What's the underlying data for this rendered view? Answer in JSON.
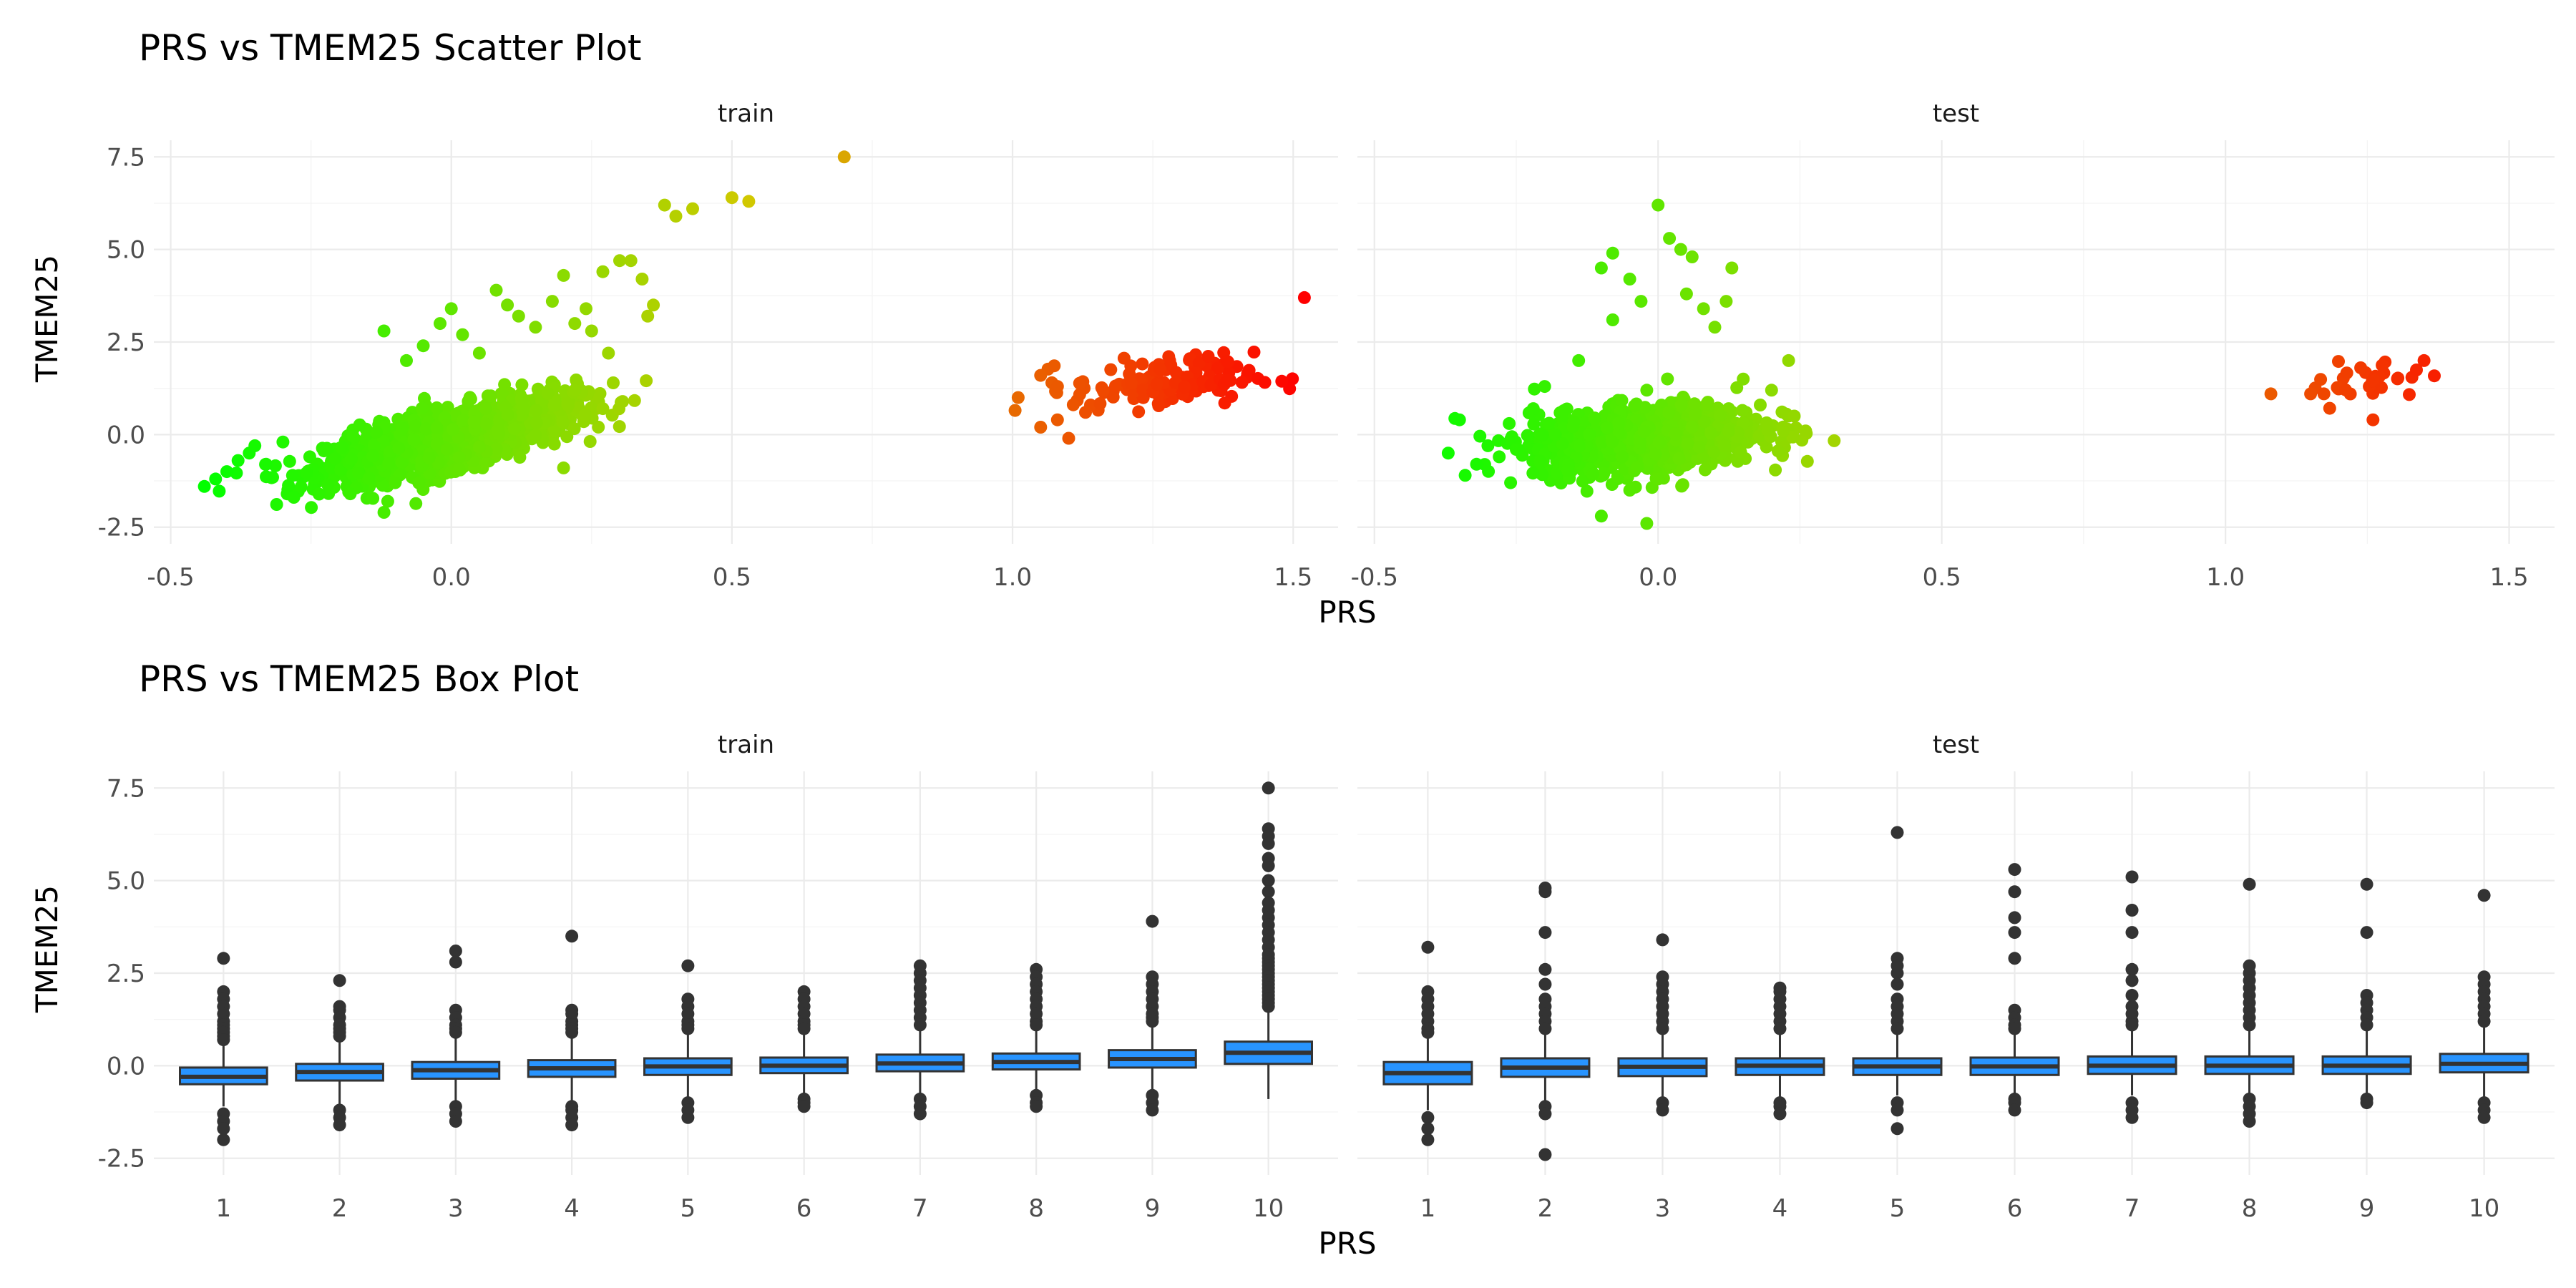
{
  "chart_data": [
    {
      "type": "scatter",
      "title": "PRS vs TMEM25 Scatter Plot",
      "xlabel": "PRS",
      "ylabel": "TMEM25",
      "xlim": [
        -0.53,
        1.58
      ],
      "ylim": [
        -2.95,
        7.95
      ],
      "x_ticks": [
        "-0.5",
        "0.0",
        "0.5",
        "1.0",
        "1.5"
      ],
      "y_ticks": [
        "-2.5",
        "0.0",
        "2.5",
        "5.0",
        "7.5"
      ],
      "grid": true,
      "color_by": "PRS",
      "color_scale": [
        "#00ff00",
        "#ff0000"
      ],
      "panels": [
        {
          "strip": "train",
          "clusters": [
            {
              "cx": 0.0,
              "cy": -0.1,
              "sx": 0.11,
              "sy": 0.55,
              "rho": 0.72,
              "n": 1500
            },
            {
              "cx": 1.27,
              "cy": 1.4,
              "sx": 0.08,
              "sy": 0.35,
              "rho": 0.2,
              "n": 140
            }
          ],
          "points": [
            [
              -0.44,
              -1.4
            ],
            [
              -0.42,
              -1.2
            ],
            [
              -0.4,
              -1.0
            ],
            [
              -0.38,
              -0.7
            ],
            [
              -0.36,
              -0.5
            ],
            [
              -0.35,
              -0.3
            ],
            [
              -0.33,
              -0.8
            ],
            [
              -0.3,
              -0.2
            ],
            [
              -0.12,
              2.8
            ],
            [
              -0.18,
              -1.6
            ],
            [
              -0.12,
              -2.1
            ],
            [
              -0.1,
              -1.3
            ],
            [
              -0.08,
              2.0
            ],
            [
              -0.05,
              2.4
            ],
            [
              -0.02,
              3.0
            ],
            [
              0.0,
              3.4
            ],
            [
              0.02,
              2.7
            ],
            [
              0.05,
              2.2
            ],
            [
              0.08,
              3.9
            ],
            [
              0.1,
              3.5
            ],
            [
              0.12,
              3.2
            ],
            [
              0.15,
              2.9
            ],
            [
              0.18,
              3.6
            ],
            [
              0.2,
              4.3
            ],
            [
              0.22,
              3.0
            ],
            [
              0.24,
              3.4
            ],
            [
              0.25,
              2.8
            ],
            [
              0.27,
              4.4
            ],
            [
              0.3,
              4.7
            ],
            [
              0.32,
              4.7
            ],
            [
              0.35,
              3.2
            ],
            [
              0.36,
              3.5
            ],
            [
              0.34,
              4.2
            ],
            [
              0.38,
              6.2
            ],
            [
              0.4,
              5.9
            ],
            [
              0.43,
              6.1
            ],
            [
              0.5,
              6.4
            ],
            [
              0.53,
              6.3
            ],
            [
              0.7,
              7.5
            ],
            [
              0.27,
              0.7
            ],
            [
              0.2,
              -0.9
            ],
            [
              0.22,
              1.2
            ],
            [
              0.28,
              2.2
            ],
            [
              1.01,
              1.0
            ],
            [
              1.05,
              0.2
            ],
            [
              1.08,
              0.4
            ],
            [
              1.1,
              -0.1
            ],
            [
              1.13,
              0.6
            ],
            [
              1.05,
              1.6
            ],
            [
              1.07,
              1.4
            ],
            [
              1.08,
              1.3
            ],
            [
              1.52,
              3.7
            ]
          ]
        },
        {
          "strip": "test",
          "clusters": [
            {
              "cx": -0.02,
              "cy": -0.1,
              "sx": 0.1,
              "sy": 0.45,
              "rho": 0.25,
              "n": 1100
            },
            {
              "cx": 1.25,
              "cy": 1.45,
              "sx": 0.05,
              "sy": 0.3,
              "rho": 0.1,
              "n": 32
            }
          ],
          "points": [
            [
              -0.35,
              0.4
            ],
            [
              -0.37,
              -0.5
            ],
            [
              -0.34,
              -1.1
            ],
            [
              -0.32,
              -0.8
            ],
            [
              -0.3,
              -0.3
            ],
            [
              -0.28,
              -0.6
            ],
            [
              -0.25,
              -0.4
            ],
            [
              -0.26,
              -1.3
            ],
            [
              -0.08,
              3.1
            ],
            [
              -0.1,
              4.5
            ],
            [
              -0.08,
              4.9
            ],
            [
              -0.05,
              4.2
            ],
            [
              -0.03,
              3.6
            ],
            [
              -0.02,
              1.2
            ],
            [
              0.0,
              6.2
            ],
            [
              0.02,
              5.3
            ],
            [
              0.04,
              5.0
            ],
            [
              0.06,
              4.8
            ],
            [
              0.05,
              3.8
            ],
            [
              0.08,
              3.4
            ],
            [
              0.1,
              2.9
            ],
            [
              0.12,
              3.6
            ],
            [
              0.13,
              4.5
            ],
            [
              -0.14,
              2.0
            ],
            [
              -0.2,
              1.3
            ],
            [
              -0.22,
              0.7
            ],
            [
              -0.1,
              -2.2
            ],
            [
              -0.02,
              -2.4
            ],
            [
              -0.05,
              -1.5
            ],
            [
              0.0,
              -1.2
            ],
            [
              0.15,
              1.5
            ],
            [
              0.2,
              1.2
            ],
            [
              0.23,
              2.0
            ],
            [
              0.26,
              0.1
            ],
            [
              0.24,
              0.5
            ],
            [
              0.18,
              0.8
            ],
            [
              1.08,
              1.1
            ],
            [
              1.15,
              1.1
            ],
            [
              1.26,
              0.4
            ],
            [
              1.35,
              2.0
            ]
          ]
        }
      ]
    },
    {
      "type": "box",
      "title": "PRS vs TMEM25 Box Plot",
      "xlabel": "PRS",
      "ylabel": "TMEM25",
      "ylim": [
        -2.95,
        7.95
      ],
      "y_ticks": [
        "-2.5",
        "0.0",
        "2.5",
        "5.0",
        "7.5"
      ],
      "categories": [
        "1",
        "2",
        "3",
        "4",
        "5",
        "6",
        "7",
        "8",
        "9",
        "10"
      ],
      "grid": true,
      "box_color": "#2894ff",
      "line_color": "#333333",
      "panels": [
        {
          "strip": "train",
          "boxes": [
            {
              "q1": -0.5,
              "med": -0.3,
              "q3": -0.05,
              "lo": -1.1,
              "hi": 0.6,
              "out": [
                2.9,
                2.0,
                1.8,
                1.6,
                1.4,
                1.2,
                1.1,
                1.0,
                0.9,
                0.8,
                0.7,
                -1.3,
                -1.5,
                -1.7,
                -2.0
              ]
            },
            {
              "q1": -0.4,
              "med": -0.17,
              "q3": 0.05,
              "lo": -1.1,
              "hi": 0.7,
              "out": [
                2.3,
                1.6,
                1.5,
                1.3,
                1.1,
                1.0,
                0.9,
                0.8,
                -1.2,
                -1.4,
                -1.6
              ]
            },
            {
              "q1": -0.35,
              "med": -0.12,
              "q3": 0.1,
              "lo": -1.0,
              "hi": 0.8,
              "out": [
                3.1,
                2.8,
                1.5,
                1.3,
                1.1,
                1.0,
                0.9,
                -1.1,
                -1.3,
                -1.5
              ]
            },
            {
              "q1": -0.3,
              "med": -0.07,
              "q3": 0.15,
              "lo": -1.0,
              "hi": 0.8,
              "out": [
                3.5,
                1.5,
                1.4,
                1.2,
                1.1,
                1.0,
                0.9,
                -1.1,
                -1.2,
                -1.4,
                -1.6
              ]
            },
            {
              "q1": -0.25,
              "med": -0.02,
              "q3": 0.2,
              "lo": -0.9,
              "hi": 0.9,
              "out": [
                2.7,
                1.8,
                1.6,
                1.4,
                1.2,
                1.1,
                1.0,
                -1.0,
                -1.2,
                -1.4
              ]
            },
            {
              "q1": -0.2,
              "med": 0.0,
              "q3": 0.22,
              "lo": -0.8,
              "hi": 0.9,
              "out": [
                2.0,
                1.8,
                1.6,
                1.4,
                1.2,
                1.1,
                1.0,
                -0.9,
                -1.0,
                -1.1
              ]
            },
            {
              "q1": -0.15,
              "med": 0.06,
              "q3": 0.3,
              "lo": -0.8,
              "hi": 1.0,
              "out": [
                2.7,
                2.5,
                2.3,
                2.1,
                1.9,
                1.7,
                1.5,
                1.3,
                1.1,
                -0.9,
                -1.1,
                -1.3
              ]
            },
            {
              "q1": -0.1,
              "med": 0.1,
              "q3": 0.33,
              "lo": -0.7,
              "hi": 1.0,
              "out": [
                2.6,
                2.4,
                2.2,
                2.0,
                1.8,
                1.6,
                1.4,
                1.2,
                1.1,
                -0.8,
                -1.0,
                -1.1
              ]
            },
            {
              "q1": -0.05,
              "med": 0.18,
              "q3": 0.42,
              "lo": -0.7,
              "hi": 1.1,
              "out": [
                3.9,
                2.4,
                2.2,
                2.0,
                1.8,
                1.6,
                1.4,
                1.3,
                1.2,
                -0.8,
                -1.0,
                -1.2
              ]
            },
            {
              "q1": 0.05,
              "med": 0.35,
              "q3": 0.65,
              "lo": -0.9,
              "hi": 1.5,
              "out": [
                7.5,
                6.4,
                6.2,
                6.0,
                5.6,
                5.4,
                5.0,
                4.7,
                4.4,
                4.2,
                4.0,
                3.8,
                3.6,
                3.4,
                3.2,
                3.0,
                2.9,
                2.8,
                2.7,
                2.6,
                2.5,
                2.4,
                2.3,
                2.2,
                2.1,
                2.0,
                1.9,
                1.8,
                1.7,
                1.6
              ]
            }
          ]
        },
        {
          "strip": "test",
          "boxes": [
            {
              "q1": -0.5,
              "med": -0.2,
              "q3": 0.1,
              "lo": -1.2,
              "hi": 0.8,
              "out": [
                3.2,
                2.0,
                1.8,
                1.6,
                1.4,
                1.2,
                1.0,
                0.9,
                -1.4,
                -1.7,
                -2.0
              ]
            },
            {
              "q1": -0.3,
              "med": -0.05,
              "q3": 0.2,
              "lo": -1.0,
              "hi": 0.9,
              "out": [
                4.8,
                4.7,
                3.6,
                2.6,
                2.2,
                1.8,
                1.6,
                1.4,
                1.2,
                1.0,
                -1.1,
                -1.3,
                -2.4
              ]
            },
            {
              "q1": -0.28,
              "med": -0.03,
              "q3": 0.2,
              "lo": -0.9,
              "hi": 0.9,
              "out": [
                3.4,
                2.4,
                2.2,
                2.0,
                1.8,
                1.6,
                1.4,
                1.2,
                1.0,
                -1.0,
                -1.2
              ]
            },
            {
              "q1": -0.25,
              "med": 0.0,
              "q3": 0.2,
              "lo": -0.9,
              "hi": 0.9,
              "out": [
                2.1,
                2.0,
                1.8,
                1.6,
                1.4,
                1.2,
                1.0,
                -1.0,
                -1.1,
                -1.3
              ]
            },
            {
              "q1": -0.25,
              "med": -0.02,
              "q3": 0.2,
              "lo": -0.8,
              "hi": 0.9,
              "out": [
                6.3,
                2.9,
                2.7,
                2.5,
                2.2,
                1.8,
                1.6,
                1.4,
                1.2,
                1.0,
                -1.0,
                -1.2,
                -1.7
              ]
            },
            {
              "q1": -0.25,
              "med": -0.02,
              "q3": 0.22,
              "lo": -0.8,
              "hi": 0.9,
              "out": [
                5.3,
                4.7,
                4.0,
                3.6,
                2.9,
                1.5,
                1.3,
                1.1,
                1.0,
                -0.9,
                -1.0,
                -1.2
              ]
            },
            {
              "q1": -0.22,
              "med": 0.0,
              "q3": 0.25,
              "lo": -0.8,
              "hi": 1.0,
              "out": [
                5.1,
                4.2,
                3.6,
                2.6,
                2.3,
                1.9,
                1.6,
                1.4,
                1.2,
                1.1,
                -1.0,
                -1.2,
                -1.4
              ]
            },
            {
              "q1": -0.22,
              "med": 0.0,
              "q3": 0.25,
              "lo": -0.8,
              "hi": 1.0,
              "out": [
                4.9,
                2.7,
                2.5,
                2.3,
                2.1,
                1.9,
                1.7,
                1.5,
                1.3,
                1.1,
                -0.9,
                -1.1,
                -1.3,
                -1.5
              ]
            },
            {
              "q1": -0.22,
              "med": 0.0,
              "q3": 0.25,
              "lo": -0.8,
              "hi": 1.0,
              "out": [
                4.9,
                3.6,
                1.9,
                1.7,
                1.5,
                1.3,
                1.1,
                -0.9,
                -1.0
              ]
            },
            {
              "q1": -0.18,
              "med": 0.05,
              "q3": 0.32,
              "lo": -0.9,
              "hi": 1.1,
              "out": [
                4.6,
                2.4,
                2.2,
                2.0,
                1.8,
                1.6,
                1.4,
                1.2,
                -1.0,
                -1.2,
                -1.4
              ]
            }
          ]
        }
      ]
    }
  ]
}
